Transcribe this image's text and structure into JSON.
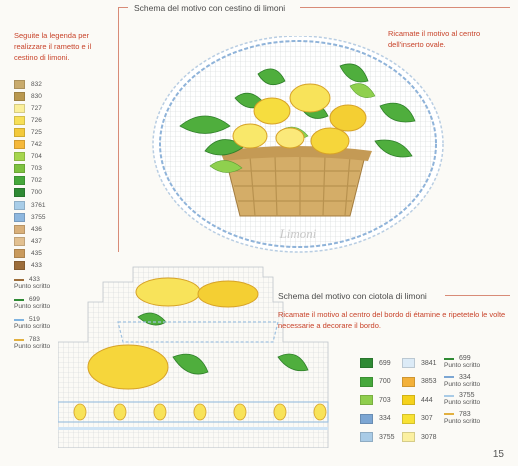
{
  "top_header": "Schema del motivo con cestino di limoni",
  "intro": "Seguite la legenda per realizzare il rametto e il cestino di limoni.",
  "left_legend": [
    {
      "code": "832",
      "color": "#c9ab6d"
    },
    {
      "code": "830",
      "color": "#b9984f"
    },
    {
      "code": "727",
      "color": "#fbef9a"
    },
    {
      "code": "726",
      "color": "#f7df57"
    },
    {
      "code": "725",
      "color": "#f3c93b"
    },
    {
      "code": "742",
      "color": "#f5b83a"
    },
    {
      "code": "704",
      "color": "#a6d64d"
    },
    {
      "code": "703",
      "color": "#7ec23f"
    },
    {
      "code": "702",
      "color": "#46a83b"
    },
    {
      "code": "700",
      "color": "#2f8a34"
    },
    {
      "code": "3761",
      "color": "#a8cde8"
    },
    {
      "code": "3755",
      "color": "#8db7df"
    },
    {
      "code": "436",
      "color": "#d9b07a"
    },
    {
      "code": "437",
      "color": "#e2c090"
    },
    {
      "code": "435",
      "color": "#c99a5c"
    },
    {
      "code": "433",
      "color": "#9c6d3a"
    }
  ],
  "left_lines": [
    {
      "code": "433",
      "label": "Punto scritto",
      "color": "#9c6d3a"
    },
    {
      "code": "699",
      "label": "Punto scritto",
      "color": "#2f8a34"
    },
    {
      "code": "519",
      "label": "Punto scritto",
      "color": "#7fb3e0"
    },
    {
      "code": "783",
      "label": "Punto scritto",
      "color": "#e2b040"
    }
  ],
  "top_note": "Ricamate il motivo al centro dell'inserto ovale.",
  "oval_text": "Limoni",
  "bottom_header": "Schema del motivo con ciotola di limoni",
  "bottom_note": "Ricamate il motivo al centro del bordo di étamine e ripetetelo le volte necessarie a decorare il bordo.",
  "bottom_legend_col1": [
    {
      "code": "699",
      "color": "#2f8a34"
    },
    {
      "code": "700",
      "color": "#46a83b"
    },
    {
      "code": "703",
      "color": "#8fce4d"
    },
    {
      "code": "334",
      "color": "#7ca6d3"
    },
    {
      "code": "3755",
      "color": "#a9cbe6"
    }
  ],
  "bottom_legend_col2": [
    {
      "code": "3841",
      "color": "#dcebf7"
    },
    {
      "code": "3853",
      "color": "#f3b13a"
    },
    {
      "code": "444",
      "color": "#f5d21c"
    },
    {
      "code": "307",
      "color": "#f8e234"
    },
    {
      "code": "3078",
      "color": "#fbf0a0"
    }
  ],
  "bottom_legend_lines": [
    {
      "code": "699",
      "label": "Punto scritto",
      "color": "#2f8a34"
    },
    {
      "code": "334",
      "label": "Punto scritto",
      "color": "#7ca6d3"
    },
    {
      "code": "3755",
      "label": "Punto scritto",
      "color": "#a9cbe6"
    },
    {
      "code": "783",
      "label": "Punto scritto",
      "color": "#e2b040"
    }
  ],
  "page_number": "15"
}
